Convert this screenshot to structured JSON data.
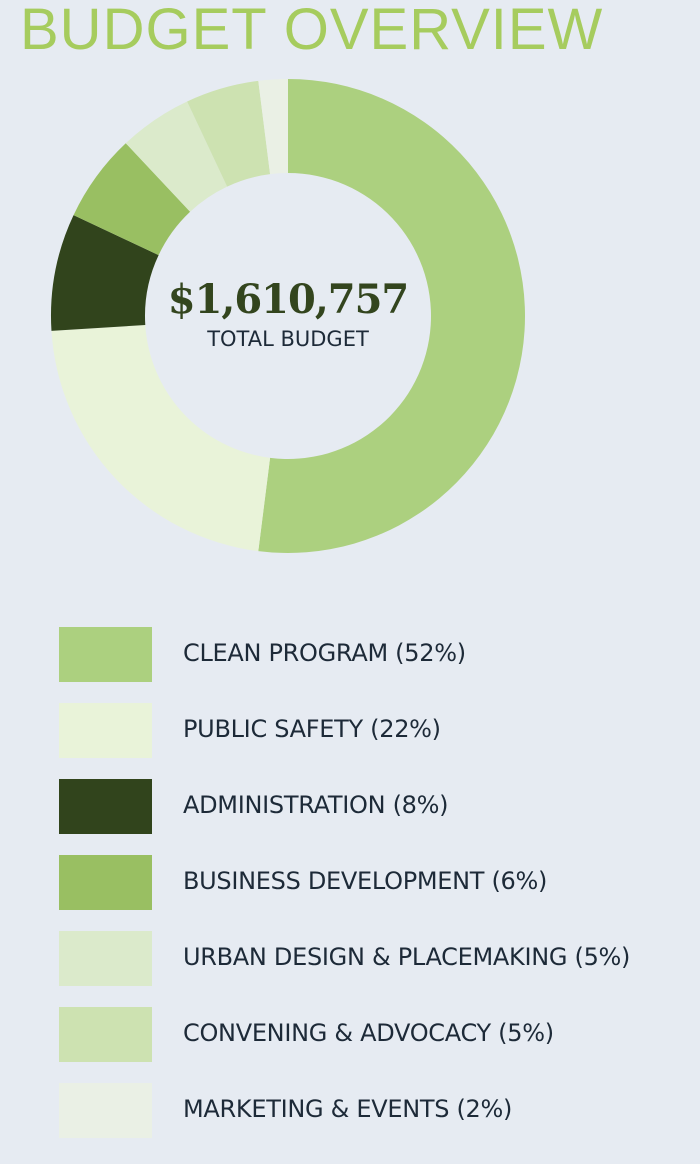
{
  "title": "BUDGET OVERVIEW",
  "center": {
    "amount": "$1,610,757",
    "label": "TOTAL BUDGET"
  },
  "chart_data": {
    "type": "pie",
    "title": "BUDGET OVERVIEW",
    "total": 1610757,
    "slices": [
      {
        "label": "CLEAN PROGRAM (52%)",
        "value": 52,
        "color": "#acd07f"
      },
      {
        "label": "PUBLIC SAFETY (22%)",
        "value": 22,
        "color": "#e9f3d9"
      },
      {
        "label": "ADMINISTRATION (8%)",
        "value": 8,
        "color": "#31441c"
      },
      {
        "label": "BUSINESS DEVELOPMENT (6%)",
        "value": 6,
        "color": "#99bf62"
      },
      {
        "label": "URBAN DESIGN & PLACEMAKING (5%)",
        "value": 5,
        "color": "#dbeacb"
      },
      {
        "label": "CONVENING & ADVOCACY (5%)",
        "value": 5,
        "color": "#cde2b1"
      },
      {
        "label": "MARKETING & EVENTS (2%)",
        "value": 2,
        "color": "#eaf0e5"
      }
    ]
  }
}
